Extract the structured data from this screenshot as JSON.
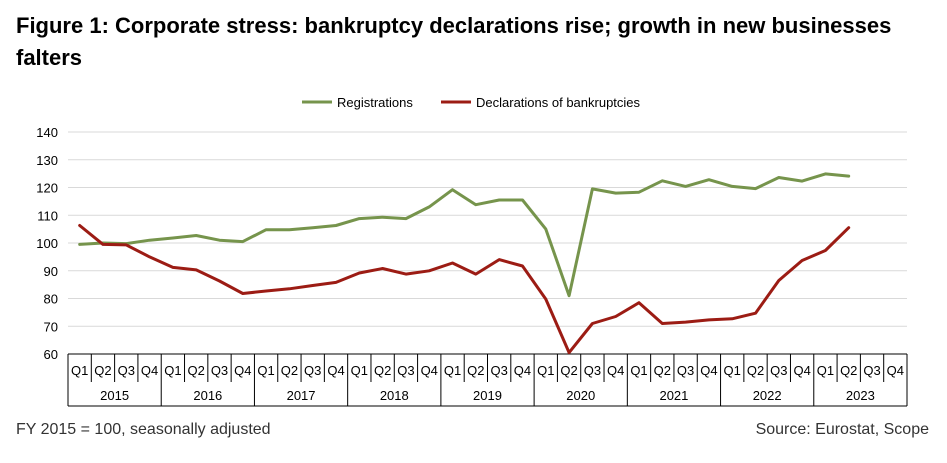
{
  "title": "Figure 1: Corporate stress: bankruptcy declarations rise; growth in new businesses falters",
  "footnote": "FY 2015 = 100, seasonally adjusted",
  "source": "Source: Eurostat, Scope",
  "chart_data": {
    "type": "line",
    "title": "Figure 1: Corporate stress: bankruptcy declarations rise; growth in new businesses falters",
    "xlabel": "",
    "ylabel": "",
    "ylim": [
      60,
      140
    ],
    "yticks": [
      60,
      70,
      80,
      90,
      100,
      110,
      120,
      130,
      140
    ],
    "grid": true,
    "legend_position": "top-center",
    "quarters": [
      "Q1",
      "Q2",
      "Q3",
      "Q4"
    ],
    "years": [
      "2015",
      "2016",
      "2017",
      "2018",
      "2019",
      "2020",
      "2021",
      "2022",
      "2023"
    ],
    "categories": [
      "2015 Q1",
      "2015 Q2",
      "2015 Q3",
      "2015 Q4",
      "2016 Q1",
      "2016 Q2",
      "2016 Q3",
      "2016 Q4",
      "2017 Q1",
      "2017 Q2",
      "2017 Q3",
      "2017 Q4",
      "2018 Q1",
      "2018 Q2",
      "2018 Q3",
      "2018 Q4",
      "2019 Q1",
      "2019 Q2",
      "2019 Q3",
      "2019 Q4",
      "2020 Q1",
      "2020 Q2",
      "2020 Q3",
      "2020 Q4",
      "2021 Q1",
      "2021 Q2",
      "2021 Q3",
      "2021 Q4",
      "2022 Q1",
      "2022 Q2",
      "2022 Q3",
      "2022 Q4",
      "2023 Q1",
      "2023 Q2",
      "2023 Q3",
      "2023 Q4"
    ],
    "series": [
      {
        "name": "Registrations",
        "color": "#76944c",
        "values": [
          99.5,
          100,
          99.8,
          101,
          101.8,
          102.7,
          101,
          100.5,
          104.8,
          104.8,
          105.5,
          106.3,
          108.8,
          109.3,
          108.8,
          113,
          119.2,
          113.8,
          115.5,
          115.5,
          105,
          81,
          119.5,
          118,
          118.3,
          122.4,
          120.4,
          122.8,
          120.4,
          119.6,
          123.6,
          122.3,
          124.9,
          124.1,
          null,
          null
        ]
      },
      {
        "name": "Declarations of bankruptcies",
        "color": "#9c1c14",
        "values": [
          106.3,
          99.5,
          99.3,
          95,
          91.2,
          90.3,
          86.3,
          81.8,
          82.7,
          83.5,
          84.7,
          85.8,
          89.2,
          90.8,
          88.8,
          90,
          92.8,
          88.8,
          94,
          91.7,
          79.8,
          60.5,
          71,
          73.5,
          78.5,
          71,
          71.5,
          72.3,
          72.7,
          74.7,
          86.5,
          93.7,
          97.3,
          105.5,
          null,
          null
        ]
      }
    ]
  }
}
